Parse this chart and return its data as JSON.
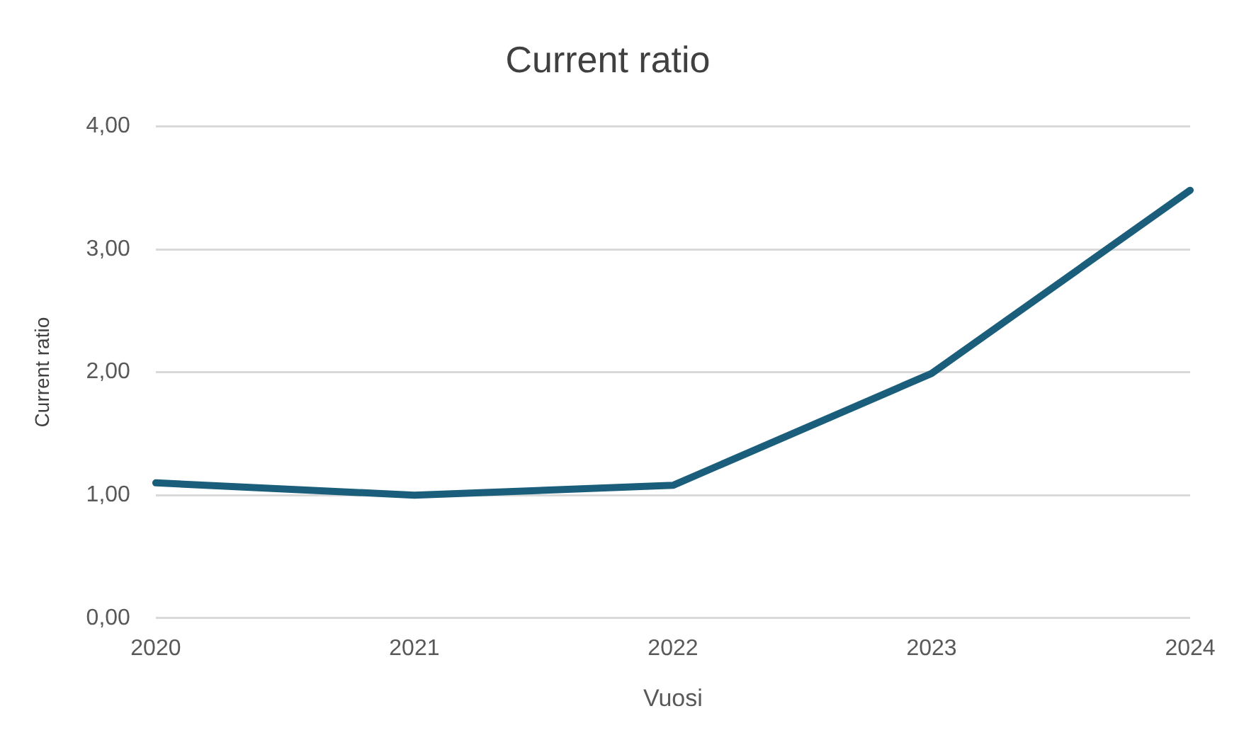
{
  "chart_data": {
    "type": "line",
    "title": "Current ratio",
    "xlabel": "Vuosi",
    "ylabel": "Current ratio",
    "categories": [
      "2020",
      "2021",
      "2022",
      "2023",
      "2024"
    ],
    "series": [
      {
        "color": "#1b5e7b",
        "values": [
          1.1,
          1.0,
          1.08,
          1.99,
          3.48
        ]
      }
    ],
    "ylim": [
      0,
      4
    ],
    "yticks": [
      {
        "value": 0,
        "label": "0,00"
      },
      {
        "value": 1,
        "label": "1,00"
      },
      {
        "value": 2,
        "label": "2,00"
      },
      {
        "value": 3,
        "label": "3,00"
      },
      {
        "value": 4,
        "label": "4,00"
      }
    ],
    "grid": "y",
    "legend": false,
    "marker": "none",
    "line_style": "solid"
  }
}
